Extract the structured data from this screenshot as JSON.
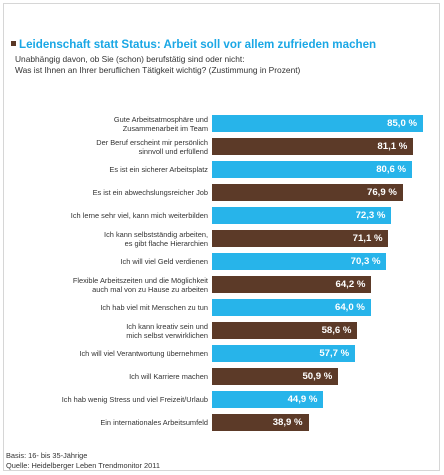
{
  "header": {
    "title": "Leidenschaft statt Status: Arbeit soll vor allem zufrieden machen",
    "subtitle_line1": "Unabhängig davon, ob Sie (schon) berufstätig sind oder nicht:",
    "subtitle_line2": "Was ist Ihnen an Ihrer beruflichen Tätigkeit wichtig? (Zustimmung in Prozent)"
  },
  "footer": {
    "basis": "Basis: 16- bis 35-Jährige",
    "source": "Quelle: Heidelberger Leben Trendmonitor 2011"
  },
  "colors": {
    "blue": "#27b4ea",
    "brown": "#5c3a28",
    "title": "#1aa7e5"
  },
  "chart_data": {
    "type": "bar",
    "orientation": "horizontal",
    "unit": "%",
    "xlim": [
      0,
      90
    ],
    "categories": [
      "Gute Arbeitsatmosphäre und\nZusammenarbeit im Team",
      "Der Beruf erscheint mir persönlich\nsinnvoll und erfüllend",
      "Es ist ein sicherer Arbeitsplatz",
      "Es ist ein abwechslungsreicher Job",
      "Ich lerne sehr viel, kann mich weiterbilden",
      "Ich kann selbstständig arbeiten,\nes gibt flache Hierarchien",
      "Ich will viel Geld verdienen",
      "Flexible Arbeitszeiten und die Möglichkeit\nauch mal von zu Hause zu arbeiten",
      "Ich hab viel mit Menschen zu tun",
      "Ich kann kreativ sein und\nmich selbst verwirklichen",
      "Ich will viel Verantwortung übernehmen",
      "Ich will Karriere machen",
      "Ich hab wenig Stress und viel Freizeit/Urlaub",
      "Ein internationales Arbeitsumfeld"
    ],
    "values": [
      85.0,
      81.1,
      80.6,
      76.9,
      72.3,
      71.1,
      70.3,
      64.2,
      64.0,
      58.6,
      57.7,
      50.9,
      44.9,
      38.9
    ],
    "value_labels": [
      "85,0 %",
      "81,1 %",
      "80,6 %",
      "76,9 %",
      "72,3 %",
      "71,1 %",
      "70,3 %",
      "64,2 %",
      "64,0 %",
      "58,6 %",
      "57,7 %",
      "50,9 %",
      "44,9 %",
      "38,9 %"
    ],
    "bar_colors": [
      "blue",
      "brown",
      "blue",
      "brown",
      "blue",
      "brown",
      "blue",
      "brown",
      "blue",
      "brown",
      "blue",
      "brown",
      "blue",
      "brown"
    ]
  }
}
